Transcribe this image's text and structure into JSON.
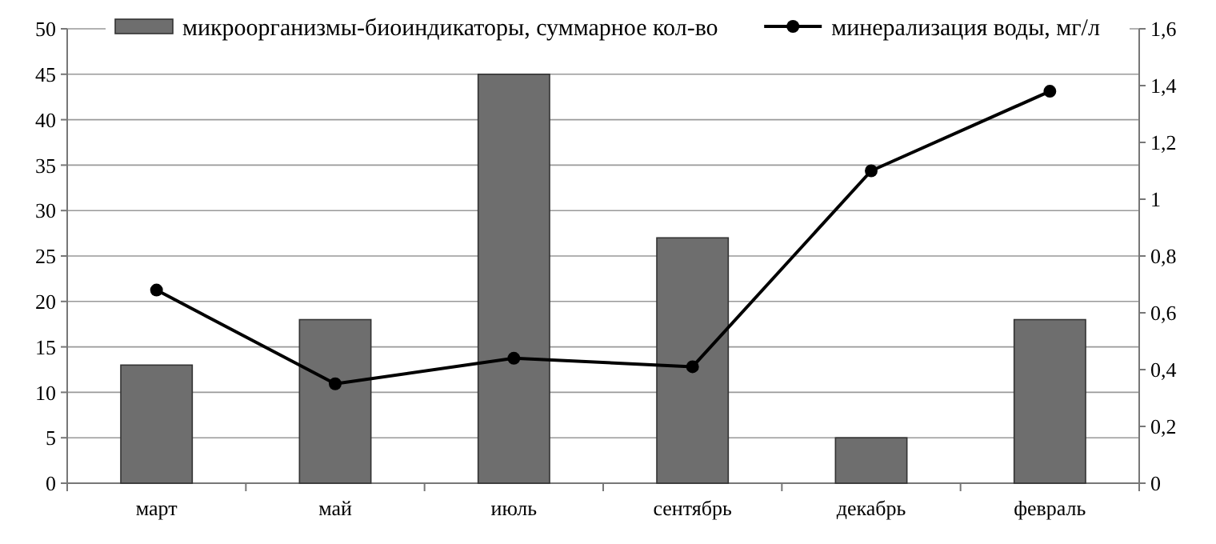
{
  "chart_data": {
    "type": "bar",
    "categories": [
      "март",
      "май",
      "июль",
      "сентябрь",
      "декабрь",
      "февраль"
    ],
    "series": [
      {
        "name": "микроорганизмы-биоиндикаторы, суммарное кол-во",
        "color": "#6e6e6e",
        "values": [
          13,
          18,
          45,
          27,
          5,
          18
        ]
      },
      {
        "name": "минерализация воды, мг/л",
        "type": "line",
        "axis": "y2",
        "color": "#000000",
        "values": [
          0.68,
          0.35,
          0.44,
          0.41,
          1.1,
          1.38
        ]
      }
    ],
    "ylim": [
      0,
      50
    ],
    "yticks": [
      0,
      5,
      10,
      15,
      20,
      25,
      30,
      35,
      40,
      45,
      50
    ],
    "y2lim": [
      0,
      1.6
    ],
    "y2ticks": [
      0,
      {
        "value": 0.2,
        "label": "0,2"
      },
      {
        "value": 0.4,
        "label": "0,4"
      },
      {
        "value": 0.6,
        "label": "0,6"
      },
      {
        "value": 0.8,
        "label": "0,8"
      },
      1,
      {
        "value": 1.2,
        "label": "1,2"
      },
      {
        "value": 1.4,
        "label": "1,4"
      },
      {
        "value": 1.6,
        "label": "1,6"
      }
    ],
    "grid": "y",
    "legend": "top",
    "marker": "circle"
  }
}
